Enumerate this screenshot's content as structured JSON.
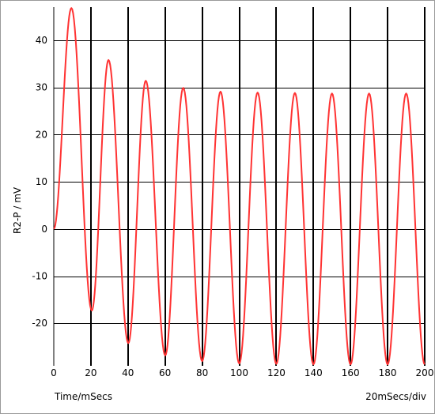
{
  "chart_data": {
    "type": "line",
    "title": "",
    "xlabel": "Time/mSecs",
    "ylabel": "R2-P / mV",
    "scale_label": "20mSecs/div",
    "xlim": [
      0,
      200
    ],
    "ylim": [
      -29,
      47
    ],
    "x_ticks": [
      0,
      20,
      40,
      60,
      80,
      100,
      120,
      140,
      160,
      180,
      200
    ],
    "y_ticks": [
      -20,
      -10,
      0,
      10,
      20,
      30,
      40
    ],
    "grid": true,
    "series_color": "#ff3333",
    "series": [
      {
        "x": [
          0,
          9.5,
          20.5,
          29.5,
          40.2,
          49.6,
          60.1,
          69.8,
          80.0,
          89.9,
          100.0,
          109.9,
          120.0,
          130.0,
          140.0,
          150.0,
          160.0,
          170.0,
          180.0,
          190.0,
          200.0
        ],
        "values": [
          0,
          46.8,
          -17.3,
          35.8,
          -24.2,
          31.4,
          -26.8,
          29.9,
          -28.0,
          29.1,
          -28.5,
          28.9,
          -28.6,
          28.8,
          -28.7,
          28.7,
          -28.7,
          28.7,
          -28.7,
          28.7,
          -28.7
        ]
      }
    ]
  }
}
